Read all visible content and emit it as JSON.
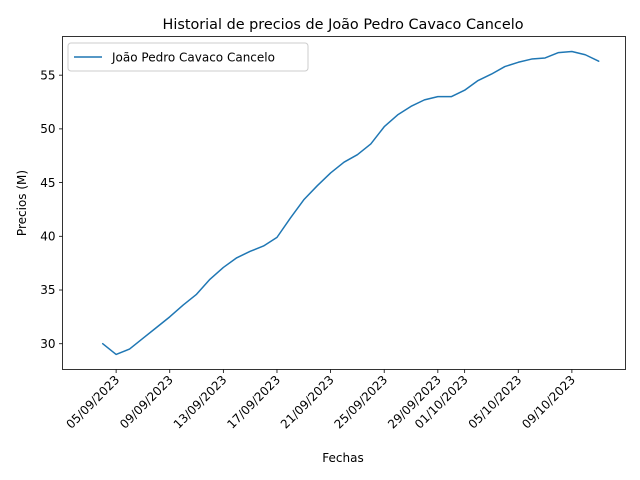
{
  "chart_data": {
    "type": "line",
    "title": "Historial de precios de João Pedro Cavaco Cancelo",
    "xlabel": "Fechas",
    "ylabel": "Precios (M)",
    "legend_position": "top-left",
    "grid": false,
    "ylim": [
      27.6,
      58.6
    ],
    "xlim": [
      "2023-09-01",
      "2023-10-13"
    ],
    "x_ticks": [
      "05/09/2023",
      "09/09/2023",
      "13/09/2023",
      "17/09/2023",
      "21/09/2023",
      "25/09/2023",
      "29/09/2023",
      "01/10/2023",
      "05/10/2023",
      "09/10/2023"
    ],
    "x_tick_dates": [
      "2023-09-05",
      "2023-09-09",
      "2023-09-13",
      "2023-09-17",
      "2023-09-21",
      "2023-09-25",
      "2023-09-29",
      "2023-10-01",
      "2023-10-05",
      "2023-10-09"
    ],
    "y_ticks": [
      30,
      35,
      40,
      45,
      50,
      55
    ],
    "series": [
      {
        "name": "João Pedro Cavaco Cancelo",
        "color": "#1f77b4",
        "x": [
          "2023-09-04",
          "2023-09-05",
          "2023-09-06",
          "2023-09-07",
          "2023-09-08",
          "2023-09-09",
          "2023-09-10",
          "2023-09-11",
          "2023-09-12",
          "2023-09-13",
          "2023-09-14",
          "2023-09-15",
          "2023-09-16",
          "2023-09-17",
          "2023-09-18",
          "2023-09-19",
          "2023-09-20",
          "2023-09-21",
          "2023-09-22",
          "2023-09-23",
          "2023-09-24",
          "2023-09-25",
          "2023-09-26",
          "2023-09-27",
          "2023-09-28",
          "2023-09-29",
          "2023-09-30",
          "2023-10-01",
          "2023-10-02",
          "2023-10-03",
          "2023-10-04",
          "2023-10-05",
          "2023-10-06",
          "2023-10-07",
          "2023-10-08",
          "2023-10-09",
          "2023-10-10",
          "2023-10-11"
        ],
        "y": [
          30.0,
          29.0,
          29.5,
          30.5,
          31.5,
          32.5,
          33.6,
          34.6,
          36.0,
          37.1,
          38.0,
          38.6,
          39.1,
          39.9,
          41.7,
          43.4,
          44.7,
          45.9,
          46.9,
          47.6,
          48.6,
          50.2,
          51.3,
          52.1,
          52.7,
          53.0,
          53.0,
          53.6,
          54.5,
          55.1,
          55.8,
          56.2,
          56.5,
          56.6,
          57.1,
          57.2,
          56.9,
          56.3
        ]
      }
    ]
  }
}
